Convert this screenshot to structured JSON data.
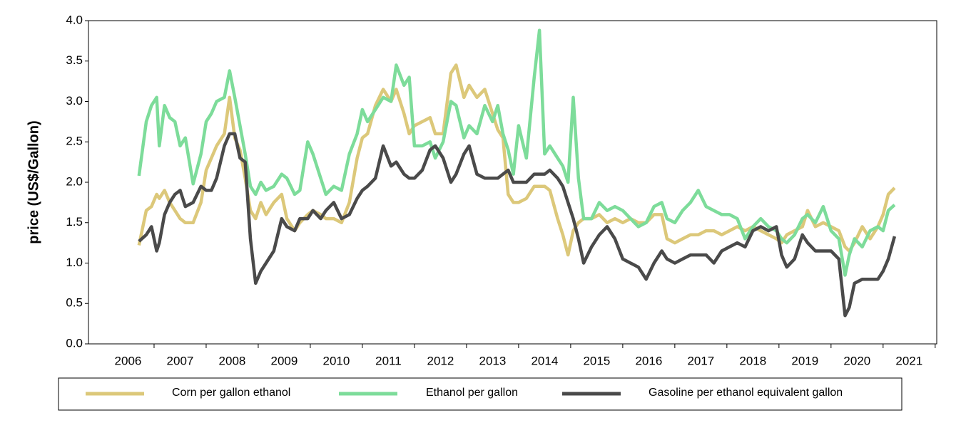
{
  "chart_data": {
    "type": "line",
    "y_label": "price (US$/Gallon)",
    "x": [
      2006.71,
      2006.85,
      2006.95,
      2007.05,
      2007.1,
      2007.2,
      2007.3,
      2007.4,
      2007.5,
      2007.6,
      2007.75,
      2007.9,
      2008.0,
      2008.1,
      2008.2,
      2008.35,
      2008.45,
      2008.55,
      2008.65,
      2008.75,
      2008.85,
      2008.95,
      2009.05,
      2009.15,
      2009.3,
      2009.45,
      2009.55,
      2009.7,
      2009.8,
      2009.95,
      2010.05,
      2010.2,
      2010.3,
      2010.45,
      2010.6,
      2010.75,
      2010.9,
      2011.0,
      2011.1,
      2011.25,
      2011.4,
      2011.55,
      2011.65,
      2011.8,
      2011.9,
      2012.0,
      2012.15,
      2012.3,
      2012.4,
      2012.55,
      2012.7,
      2012.8,
      2012.95,
      2013.05,
      2013.2,
      2013.35,
      2013.5,
      2013.6,
      2013.7,
      2013.8,
      2013.9,
      2014.0,
      2014.15,
      2014.3,
      2014.4,
      2014.5,
      2014.6,
      2014.75,
      2014.85,
      2014.95,
      2015.05,
      2015.15,
      2015.25,
      2015.4,
      2015.55,
      2015.7,
      2015.85,
      2016.0,
      2016.15,
      2016.3,
      2016.45,
      2016.6,
      2016.75,
      2016.85,
      2017.0,
      2017.15,
      2017.3,
      2017.45,
      2017.6,
      2017.75,
      2017.9,
      2018.05,
      2018.2,
      2018.35,
      2018.5,
      2018.65,
      2018.8,
      2018.95,
      2019.05,
      2019.15,
      2019.3,
      2019.45,
      2019.55,
      2019.7,
      2019.85,
      2020.0,
      2020.15,
      2020.27,
      2020.35,
      2020.45,
      2020.6,
      2020.75,
      2020.9,
      2021.0,
      2021.1,
      2021.22
    ],
    "series": [
      {
        "name": "Corn per gallon ethanol",
        "color": "#dcc87a",
        "values": [
          1.22,
          1.65,
          1.7,
          1.85,
          1.8,
          1.9,
          1.75,
          1.65,
          1.55,
          1.5,
          1.5,
          1.75,
          2.15,
          2.3,
          2.45,
          2.6,
          3.05,
          2.55,
          2.4,
          2.05,
          1.65,
          1.55,
          1.75,
          1.6,
          1.75,
          1.85,
          1.55,
          1.4,
          1.5,
          1.6,
          1.65,
          1.6,
          1.55,
          1.55,
          1.5,
          1.75,
          2.3,
          2.55,
          2.6,
          2.95,
          3.15,
          3.0,
          3.15,
          2.85,
          2.6,
          2.7,
          2.75,
          2.8,
          2.6,
          2.6,
          3.35,
          3.45,
          3.05,
          3.2,
          3.05,
          3.15,
          2.85,
          2.65,
          2.55,
          1.85,
          1.75,
          1.75,
          1.8,
          1.95,
          1.95,
          1.95,
          1.9,
          1.55,
          1.35,
          1.1,
          1.4,
          1.5,
          1.55,
          1.55,
          1.6,
          1.5,
          1.55,
          1.5,
          1.55,
          1.5,
          1.5,
          1.6,
          1.6,
          1.3,
          1.25,
          1.3,
          1.35,
          1.35,
          1.4,
          1.4,
          1.35,
          1.4,
          1.45,
          1.4,
          1.45,
          1.4,
          1.35,
          1.3,
          1.25,
          1.35,
          1.4,
          1.45,
          1.65,
          1.45,
          1.5,
          1.45,
          1.4,
          1.2,
          1.15,
          1.25,
          1.45,
          1.3,
          1.45,
          1.6,
          1.85,
          1.93
        ]
      },
      {
        "name": "Ethanol per gallon",
        "color": "#7ddc9a",
        "values": [
          2.08,
          2.75,
          2.95,
          3.05,
          2.45,
          2.95,
          2.8,
          2.75,
          2.45,
          2.55,
          1.98,
          2.35,
          2.75,
          2.85,
          3.0,
          3.05,
          3.38,
          3.05,
          2.7,
          2.35,
          1.95,
          1.85,
          2.0,
          1.9,
          1.95,
          2.1,
          2.05,
          1.85,
          1.9,
          2.5,
          2.35,
          2.05,
          1.85,
          1.95,
          1.9,
          2.35,
          2.6,
          2.9,
          2.75,
          2.9,
          3.05,
          3.0,
          3.45,
          3.2,
          3.3,
          2.45,
          2.45,
          2.5,
          2.3,
          2.5,
          3.0,
          2.95,
          2.55,
          2.7,
          2.6,
          2.95,
          2.75,
          2.95,
          2.6,
          2.4,
          2.1,
          2.7,
          2.3,
          3.3,
          3.88,
          2.35,
          2.45,
          2.3,
          2.2,
          2.0,
          3.05,
          2.05,
          1.55,
          1.55,
          1.75,
          1.65,
          1.7,
          1.65,
          1.55,
          1.45,
          1.5,
          1.7,
          1.75,
          1.55,
          1.5,
          1.65,
          1.75,
          1.9,
          1.7,
          1.65,
          1.6,
          1.6,
          1.55,
          1.3,
          1.45,
          1.55,
          1.45,
          1.4,
          1.3,
          1.25,
          1.35,
          1.55,
          1.6,
          1.5,
          1.7,
          1.4,
          1.3,
          0.85,
          1.1,
          1.3,
          1.2,
          1.4,
          1.45,
          1.4,
          1.65,
          1.72
        ]
      },
      {
        "name": "Gasoline per ethanol equivalent gallon",
        "color": "#4a4a4a",
        "values": [
          1.27,
          1.35,
          1.45,
          1.15,
          1.25,
          1.6,
          1.75,
          1.85,
          1.9,
          1.7,
          1.75,
          1.95,
          1.9,
          1.9,
          2.05,
          2.45,
          2.6,
          2.6,
          2.3,
          2.25,
          1.3,
          0.75,
          0.9,
          1.0,
          1.15,
          1.55,
          1.45,
          1.4,
          1.55,
          1.55,
          1.65,
          1.55,
          1.65,
          1.75,
          1.55,
          1.6,
          1.8,
          1.9,
          1.95,
          2.05,
          2.45,
          2.2,
          2.25,
          2.1,
          2.05,
          2.05,
          2.15,
          2.4,
          2.45,
          2.3,
          2.0,
          2.1,
          2.35,
          2.45,
          2.1,
          2.05,
          2.05,
          2.05,
          2.1,
          2.15,
          2.0,
          2.0,
          2.0,
          2.1,
          2.1,
          2.1,
          2.15,
          2.05,
          1.95,
          1.75,
          1.55,
          1.3,
          1.0,
          1.2,
          1.35,
          1.45,
          1.3,
          1.05,
          1.0,
          0.95,
          0.8,
          1.0,
          1.15,
          1.05,
          1.0,
          1.05,
          1.1,
          1.1,
          1.1,
          1.0,
          1.15,
          1.2,
          1.25,
          1.2,
          1.4,
          1.45,
          1.4,
          1.45,
          1.1,
          0.95,
          1.05,
          1.35,
          1.25,
          1.15,
          1.15,
          1.15,
          1.05,
          0.35,
          0.45,
          0.75,
          0.8,
          0.8,
          0.8,
          0.9,
          1.05,
          1.33
        ]
      }
    ],
    "xlim": [
      2005.74,
      2022.03
    ],
    "xticks": [
      {
        "value": 2006.5,
        "label": "2006"
      },
      {
        "value": 2007.5,
        "label": "2007"
      },
      {
        "value": 2008.5,
        "label": "2008"
      },
      {
        "value": 2009.5,
        "label": "2009"
      },
      {
        "value": 2010.5,
        "label": "2010"
      },
      {
        "value": 2011.5,
        "label": "2011"
      },
      {
        "value": 2012.5,
        "label": "2012"
      },
      {
        "value": 2013.5,
        "label": "2013"
      },
      {
        "value": 2014.5,
        "label": "2014"
      },
      {
        "value": 2015.5,
        "label": "2015"
      },
      {
        "value": 2016.5,
        "label": "2016"
      },
      {
        "value": 2017.5,
        "label": "2017"
      },
      {
        "value": 2018.5,
        "label": "2018"
      },
      {
        "value": 2019.5,
        "label": "2019"
      },
      {
        "value": 2020.5,
        "label": "2020"
      },
      {
        "value": 2021.5,
        "label": "2021"
      }
    ],
    "ylim": [
      0,
      4
    ],
    "yticks": [
      {
        "value": 0,
        "label": "0.0"
      },
      0.5,
      {
        "value": 1,
        "label": "1.0"
      },
      1.5,
      {
        "value": 2,
        "label": "2.0"
      },
      2.5,
      {
        "value": 3,
        "label": "3.0"
      },
      3.5,
      {
        "value": 4,
        "label": "4.0"
      }
    ],
    "legend": "bottom"
  }
}
